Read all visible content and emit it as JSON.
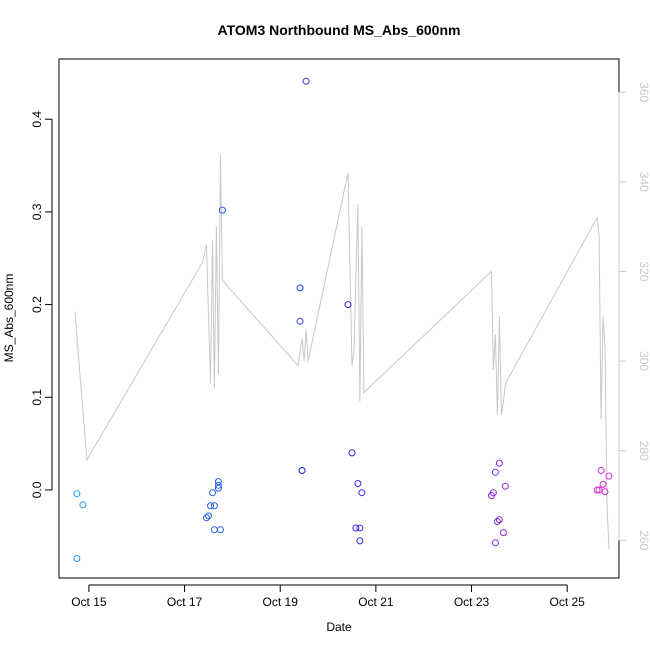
{
  "chart_data": {
    "type": "scatter",
    "title": "ATOM3 Northbound MS_Abs_600nm",
    "xlabel": "Date",
    "ylabel": "MS_Abs_600nm",
    "y2label": "",
    "xlim": [
      "2016-10-14T09:00",
      "2016-10-26T02:00"
    ],
    "ylim": [
      -0.095,
      0.465
    ],
    "y2lim": [
      251.6,
      367.4
    ],
    "x_ticks": [
      {
        "at": "2016-10-15T00:00",
        "label": "Oct 15"
      },
      {
        "at": "2016-10-17T00:00",
        "label": "Oct 17"
      },
      {
        "at": "2016-10-19T00:00",
        "label": "Oct 19"
      },
      {
        "at": "2016-10-21T00:00",
        "label": "Oct 21"
      },
      {
        "at": "2016-10-23T00:00",
        "label": "Oct 23"
      },
      {
        "at": "2016-10-25T00:00",
        "label": "Oct 25"
      }
    ],
    "y_ticks": [
      0.0,
      0.1,
      0.2,
      0.3,
      0.4
    ],
    "y_tick_labels": [
      "0.0",
      "0.1",
      "0.2",
      "0.3",
      "0.4"
    ],
    "y2_ticks": [
      260,
      280,
      300,
      320,
      340,
      360
    ],
    "y2_tick_labels": [
      "260",
      "280",
      "300",
      "320",
      "340",
      "360"
    ],
    "grid": false,
    "legend": "none",
    "line_color": "#c8c8c8",
    "point_color_start": "#1ea0ee",
    "point_color_mid": "#2a2ae8",
    "point_color_end": "#d82ad8",
    "series": [
      {
        "kind": "points",
        "axis": "left",
        "points": [
          {
            "x": "2016-10-14T18:00",
            "y": -0.004
          },
          {
            "x": "2016-10-14T18:00",
            "y": -0.074
          },
          {
            "x": "2016-10-14T21:00",
            "y": -0.016
          },
          {
            "x": "2016-10-17T11:00",
            "y": -0.03
          },
          {
            "x": "2016-10-17T12:00",
            "y": -0.028
          },
          {
            "x": "2016-10-17T13:00",
            "y": -0.017
          },
          {
            "x": "2016-10-17T14:00",
            "y": -0.003
          },
          {
            "x": "2016-10-17T15:00",
            "y": -0.017
          },
          {
            "x": "2016-10-17T15:00",
            "y": -0.043
          },
          {
            "x": "2016-10-17T17:00",
            "y": 0.002
          },
          {
            "x": "2016-10-17T17:00",
            "y": 0.005
          },
          {
            "x": "2016-10-17T17:00",
            "y": 0.009
          },
          {
            "x": "2016-10-17T18:00",
            "y": -0.043
          },
          {
            "x": "2016-10-17T19:00",
            "y": 0.302
          },
          {
            "x": "2016-10-19T10:00",
            "y": 0.218
          },
          {
            "x": "2016-10-19T10:00",
            "y": 0.182
          },
          {
            "x": "2016-10-19T11:00",
            "y": 0.021
          },
          {
            "x": "2016-10-19T11:00",
            "y": 0.021
          },
          {
            "x": "2016-10-19T13:00",
            "y": 0.441
          },
          {
            "x": "2016-10-20T10:00",
            "y": 0.2
          },
          {
            "x": "2016-10-20T12:00",
            "y": 0.04
          },
          {
            "x": "2016-10-20T14:00",
            "y": -0.041
          },
          {
            "x": "2016-10-20T15:00",
            "y": 0.007
          },
          {
            "x": "2016-10-20T16:00",
            "y": -0.041
          },
          {
            "x": "2016-10-20T16:00",
            "y": -0.055
          },
          {
            "x": "2016-10-20T17:00",
            "y": -0.003
          },
          {
            "x": "2016-10-23T10:00",
            "y": -0.006
          },
          {
            "x": "2016-10-23T11:00",
            "y": -0.003
          },
          {
            "x": "2016-10-23T12:00",
            "y": 0.019
          },
          {
            "x": "2016-10-23T12:00",
            "y": -0.057
          },
          {
            "x": "2016-10-23T13:00",
            "y": -0.034
          },
          {
            "x": "2016-10-23T14:00",
            "y": -0.032
          },
          {
            "x": "2016-10-23T14:00",
            "y": 0.029
          },
          {
            "x": "2016-10-23T16:00",
            "y": -0.046
          },
          {
            "x": "2016-10-23T17:00",
            "y": 0.004
          },
          {
            "x": "2016-10-25T15:00",
            "y": 0.0
          },
          {
            "x": "2016-10-25T16:00",
            "y": 0.0
          },
          {
            "x": "2016-10-25T17:00",
            "y": 0.021
          },
          {
            "x": "2016-10-25T18:00",
            "y": 0.006
          },
          {
            "x": "2016-10-25T19:00",
            "y": -0.002
          },
          {
            "x": "2016-10-25T21:00",
            "y": 0.015
          }
        ]
      },
      {
        "kind": "line",
        "axis": "right",
        "points": [
          {
            "x": "2016-10-14T17:00",
            "y": 311
          },
          {
            "x": "2016-10-14T19:00",
            "y": 300
          },
          {
            "x": "2016-10-14T23:00",
            "y": 278
          },
          {
            "x": "2016-10-17T09:00",
            "y": 322
          },
          {
            "x": "2016-10-17T11:00",
            "y": 326
          },
          {
            "x": "2016-10-17T12:00",
            "y": 310
          },
          {
            "x": "2016-10-17T13:00",
            "y": 295
          },
          {
            "x": "2016-10-17T14:00",
            "y": 327
          },
          {
            "x": "2016-10-17T15:00",
            "y": 294
          },
          {
            "x": "2016-10-17T16:00",
            "y": 330
          },
          {
            "x": "2016-10-17T17:00",
            "y": 297
          },
          {
            "x": "2016-10-17T18:00",
            "y": 346
          },
          {
            "x": "2016-10-17T19:00",
            "y": 318
          },
          {
            "x": "2016-10-19T09:00",
            "y": 299
          },
          {
            "x": "2016-10-19T11:00",
            "y": 305
          },
          {
            "x": "2016-10-19T12:00",
            "y": 300
          },
          {
            "x": "2016-10-19T13:00",
            "y": 307
          },
          {
            "x": "2016-10-19T14:00",
            "y": 300
          },
          {
            "x": "2016-10-20T10:00",
            "y": 342
          },
          {
            "x": "2016-10-20T12:00",
            "y": 299
          },
          {
            "x": "2016-10-20T13:00",
            "y": 302
          },
          {
            "x": "2016-10-20T15:00",
            "y": 335
          },
          {
            "x": "2016-10-20T16:00",
            "y": 291
          },
          {
            "x": "2016-10-20T17:00",
            "y": 330
          },
          {
            "x": "2016-10-20T18:00",
            "y": 293
          },
          {
            "x": "2016-10-23T10:00",
            "y": 320
          },
          {
            "x": "2016-10-23T11:00",
            "y": 298
          },
          {
            "x": "2016-10-23T12:00",
            "y": 306
          },
          {
            "x": "2016-10-23T13:00",
            "y": 288
          },
          {
            "x": "2016-10-23T14:00",
            "y": 310
          },
          {
            "x": "2016-10-23T15:00",
            "y": 288
          },
          {
            "x": "2016-10-23T16:00",
            "y": 291
          },
          {
            "x": "2016-10-23T17:00",
            "y": 295
          },
          {
            "x": "2016-10-25T15:00",
            "y": 332
          },
          {
            "x": "2016-10-25T16:00",
            "y": 328
          },
          {
            "x": "2016-10-25T17:00",
            "y": 287
          },
          {
            "x": "2016-10-25T18:00",
            "y": 310
          },
          {
            "x": "2016-10-25T19:00",
            "y": 303
          },
          {
            "x": "2016-10-25T20:00",
            "y": 268
          },
          {
            "x": "2016-10-25T21:00",
            "y": 258
          }
        ]
      }
    ]
  }
}
